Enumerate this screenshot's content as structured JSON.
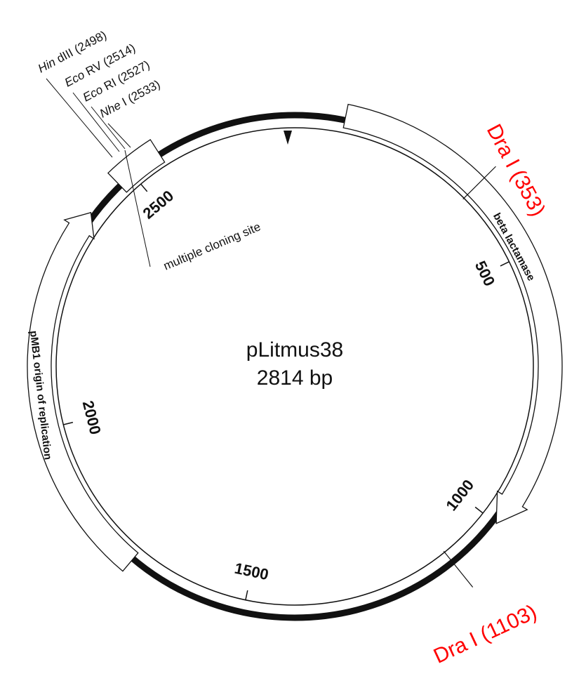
{
  "plasmid": {
    "name": "pLitmus38",
    "size_label": "2814 bp",
    "length_bp": 2814
  },
  "ticks": [
    {
      "position": 500,
      "label": "500"
    },
    {
      "position": 1000,
      "label": "1000"
    },
    {
      "position": 1500,
      "label": "1500"
    },
    {
      "position": 2000,
      "label": "2000"
    },
    {
      "position": 2500,
      "label": "2500"
    }
  ],
  "features": [
    {
      "name": "beta lactamase",
      "start": 90,
      "end": 1000,
      "direction": "forward"
    },
    {
      "name": "pMB1 origin of replication",
      "start": 1720,
      "end": 2400,
      "direction": "forward"
    }
  ],
  "multiple_cloning_site": {
    "label": "multiple cloning site",
    "sites": [
      {
        "italic": "Hin",
        "rest": " dIII (2498)",
        "position": 2498
      },
      {
        "italic": "Eco",
        "rest": " RV (2514)",
        "position": 2514
      },
      {
        "italic": "Eco",
        "rest": " RI (2527)",
        "position": 2527
      },
      {
        "italic": "Nhe",
        "rest": " I (2533)",
        "position": 2533
      }
    ]
  },
  "restriction_sites": [
    {
      "label": "Dra I (353)",
      "position": 353
    },
    {
      "label": "Dra I (1103)",
      "position": 1103
    }
  ],
  "colors": {
    "line": "#111111",
    "dra_label": "#ff0000"
  }
}
